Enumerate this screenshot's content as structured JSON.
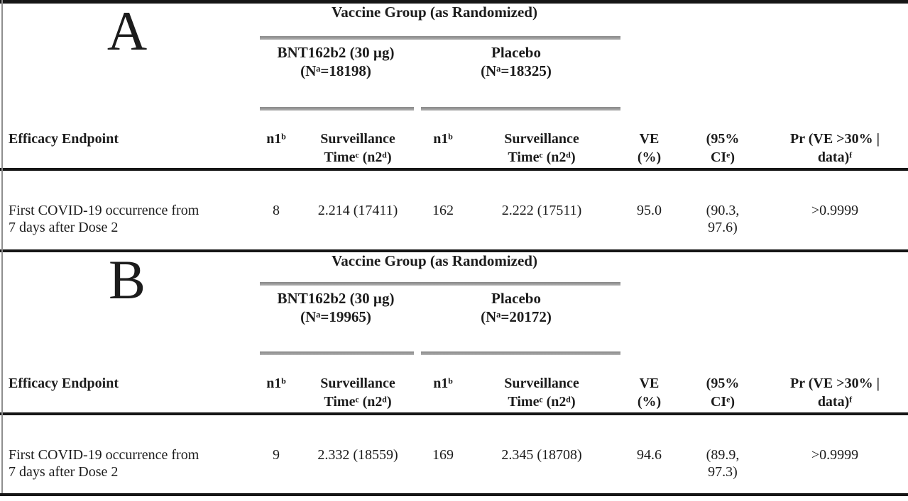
{
  "colors": {
    "background": "#ffffff",
    "text": "#1c1c1c",
    "black_rule": "#161616",
    "gray_rule": "#9a9a9a"
  },
  "document": {
    "panels": [
      {
        "label": "A",
        "group_title": "Vaccine Group (as Randomized)",
        "vaccine_group": "BNT162b2 (30 µg)\n(Nᵃ=18198)",
        "placebo_group": "Placebo\n(Nᵃ=18325)",
        "headers": {
          "endpoint": "Efficacy Endpoint",
          "n1_vaccine": "n1ᵇ",
          "surveillance_vaccine": "Surveillance\nTimeᶜ (n2ᵈ)",
          "n1_placebo": "n1ᵇ",
          "surveillance_placebo": "Surveillance\nTimeᶜ (n2ᵈ)",
          "ve": "VE\n(%)",
          "ci": "(95%\nCIᵉ)",
          "pr": "Pr (VE >30% |\ndata)ᶠ"
        },
        "row": {
          "endpoint": "First COVID-19 occurrence from\n7 days after Dose 2",
          "vaccine_n1": "8",
          "vaccine_surveillance": "2.214 (17411)",
          "placebo_n1": "162",
          "placebo_surveillance": "2.222 (17511)",
          "ve": "95.0",
          "ci": "(90.3,\n97.6)",
          "pr": ">0.9999"
        }
      },
      {
        "label": "B",
        "group_title": "Vaccine Group (as Randomized)",
        "vaccine_group": "BNT162b2 (30 µg)\n(Nᵃ=19965)",
        "placebo_group": "Placebo\n(Nᵃ=20172)",
        "headers": {
          "endpoint": "Efficacy Endpoint",
          "n1_vaccine": "n1ᵇ",
          "surveillance_vaccine": "Surveillance\nTimeᶜ (n2ᵈ)",
          "n1_placebo": "n1ᵇ",
          "surveillance_placebo": "Surveillance\nTimeᶜ (n2ᵈ)",
          "ve": "VE\n(%)",
          "ci": "(95%\nCIᵉ)",
          "pr": "Pr (VE >30% |\ndata)ᶠ"
        },
        "row": {
          "endpoint": "First COVID-19 occurrence from\n7 days after Dose 2",
          "vaccine_n1": "9",
          "vaccine_surveillance": "2.332 (18559)",
          "placebo_n1": "169",
          "placebo_surveillance": "2.345 (18708)",
          "ve": "94.6",
          "ci": "(89.9,\n97.3)",
          "pr": ">0.9999"
        }
      }
    ]
  }
}
